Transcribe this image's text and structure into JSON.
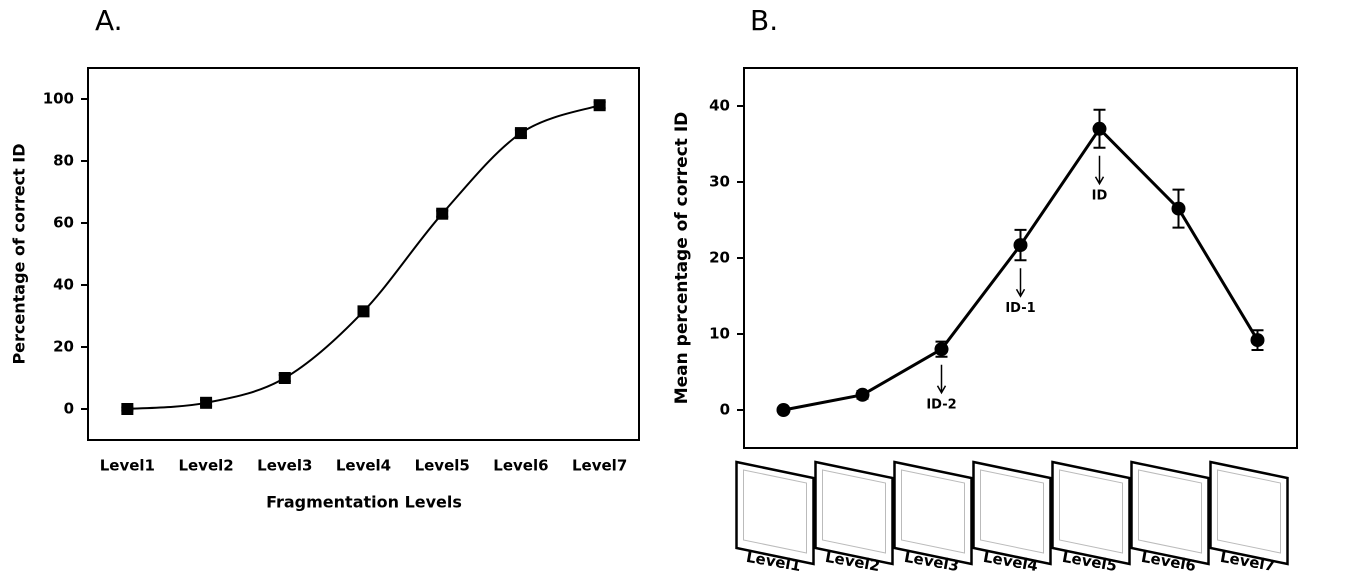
{
  "chart_data": [
    {
      "type": "line",
      "title": "A.",
      "x_label": "Fragmentation Levels",
      "y_label": "Percentage of correct ID",
      "categories": [
        "Level1",
        "Level2",
        "Level3",
        "Level4",
        "Level5",
        "Level6",
        "Level7"
      ],
      "values": [
        0,
        2,
        10,
        31.5,
        63,
        89,
        98
      ],
      "errors": [
        0.5,
        1,
        1,
        1,
        1,
        1,
        1
      ],
      "smooth": true,
      "marker": "square",
      "color": "#000000",
      "ylim": [
        -10,
        110
      ],
      "yticks": [
        0,
        20,
        40,
        60,
        80,
        100
      ]
    },
    {
      "type": "line",
      "title": "B.",
      "y_label": "Mean percentage of correct ID",
      "categories": [
        "Level1",
        "Level2",
        "Level3",
        "Level4",
        "Level5",
        "Level6",
        "Level7"
      ],
      "values": [
        0,
        2,
        8,
        21.7,
        37,
        26.5,
        9.2
      ],
      "errors": [
        0.3,
        0.5,
        1,
        2,
        2.5,
        2.5,
        1.3
      ],
      "point_labels": [
        null,
        null,
        "ID-2",
        "ID-1",
        "ID",
        null,
        null
      ],
      "smooth": false,
      "marker": "circle",
      "color": "#000000",
      "ylim": [
        -5,
        45
      ],
      "yticks": [
        0,
        10,
        20,
        30,
        40
      ]
    }
  ]
}
